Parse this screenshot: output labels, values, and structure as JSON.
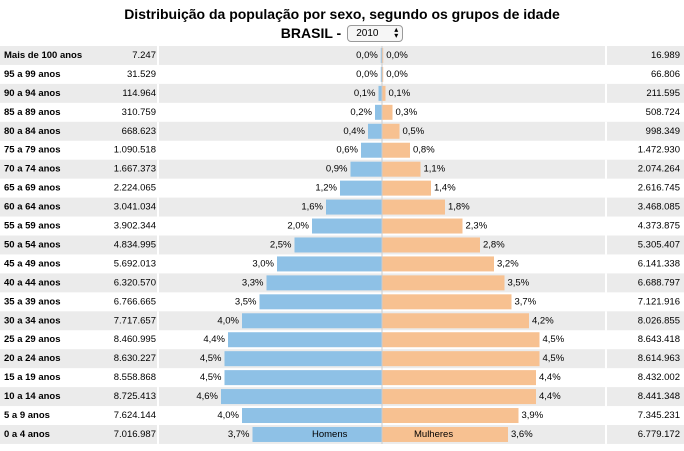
{
  "header": {
    "title": "Distribuição da população por sexo, segundo os grupos de idade",
    "subtitle": "BRASIL -",
    "year": "2010"
  },
  "legend": {
    "men_label": "Homens",
    "women_label": "Mulheres"
  },
  "colors": {
    "men": "#8ec1e6",
    "women": "#f7c191",
    "row_stripe": "#ebebeb",
    "center_line": "#cccccc"
  },
  "chart_data": {
    "type": "bar",
    "title": "Distribuição da população por sexo, segundo os grupos de idade",
    "categories": [
      "Mais de 100 anos",
      "95 a 99 anos",
      "90 a 94 anos",
      "85 a 89 anos",
      "80 a 84 anos",
      "75 a 79 anos",
      "70 a 74 anos",
      "65 a 69 anos",
      "60 a 64 anos",
      "55 a 59 anos",
      "50 a 54 anos",
      "45 a 49 anos",
      "40 a 44 anos",
      "35 a 39 anos",
      "30 a 34 anos",
      "25 a 29 anos",
      "20 a 24 anos",
      "15 a 19 anos",
      "10 a 14 anos",
      "5 a 9 anos",
      "0 a 4 anos"
    ],
    "series": [
      {
        "name": "Homens",
        "counts": [
          "7.247",
          "31.529",
          "114.964",
          "310.759",
          "668.623",
          "1.090.518",
          "1.667.373",
          "2.224.065",
          "3.041.034",
          "3.902.344",
          "4.834.995",
          "5.692.013",
          "6.320.570",
          "6.766.665",
          "7.717.657",
          "8.460.995",
          "8.630.227",
          "8.558.868",
          "8.725.413",
          "7.624.144",
          "7.016.987"
        ],
        "percent_labels": [
          "0,0%",
          "0,0%",
          "0,1%",
          "0,2%",
          "0,4%",
          "0,6%",
          "0,9%",
          "1,2%",
          "1,6%",
          "2,0%",
          "2,5%",
          "3,0%",
          "3,3%",
          "3,5%",
          "4,0%",
          "4,4%",
          "4,5%",
          "4,5%",
          "4,6%",
          "4,0%",
          "3,7%"
        ]
      },
      {
        "name": "Mulheres",
        "counts": [
          "16.989",
          "66.806",
          "211.595",
          "508.724",
          "998.349",
          "1.472.930",
          "2.074.264",
          "2.616.745",
          "3.468.085",
          "4.373.875",
          "5.305.407",
          "6.141.338",
          "6.688.797",
          "7.121.916",
          "8.026.855",
          "8.643.418",
          "8.614.963",
          "8.432.002",
          "8.441.348",
          "7.345.231",
          "6.779.172"
        ],
        "percent_labels": [
          "0,0%",
          "0,0%",
          "0,1%",
          "0,3%",
          "0,5%",
          "0,8%",
          "1,1%",
          "1,4%",
          "1,8%",
          "2,3%",
          "2,8%",
          "3,2%",
          "3,5%",
          "3,7%",
          "4,2%",
          "4,5%",
          "4,5%",
          "4,4%",
          "4,4%",
          "3,9%",
          "3,6%"
        ]
      }
    ]
  }
}
